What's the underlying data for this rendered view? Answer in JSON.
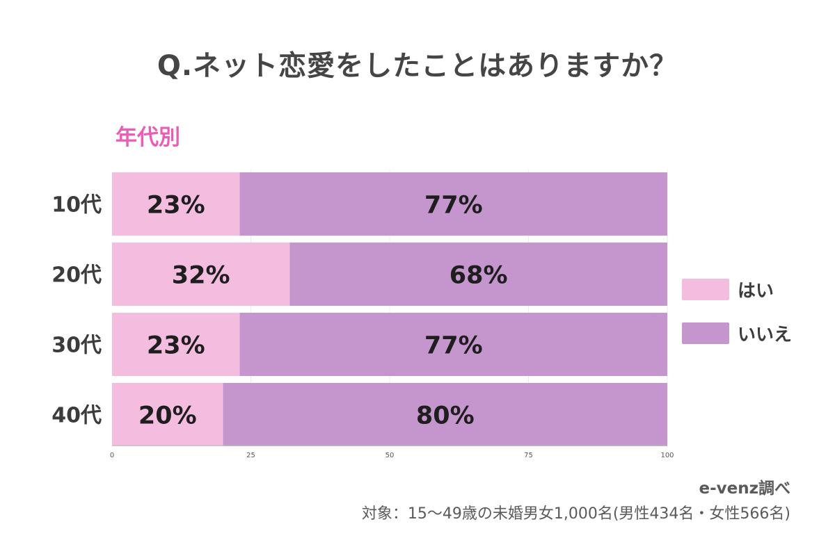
{
  "title": "Q.ネット恋愛をしたことはありますか？",
  "subtitle": "年代別",
  "source": "e-venz調べ",
  "note": "対象：15～49歳の未婚男女1,000名(男性434名・女性566名)",
  "colors": {
    "yes": "#f4bddf",
    "no": "#c596cd",
    "background": "#ffffff",
    "text": "#3c3c3c",
    "subtitle": "#e95eb4"
  },
  "chart_data": {
    "type": "bar",
    "orientation": "horizontal",
    "stacked": true,
    "categories": [
      "10代",
      "20代",
      "30代",
      "40代"
    ],
    "series": [
      {
        "name": "はい",
        "values": [
          23,
          32,
          23,
          20
        ],
        "labels": [
          "23%",
          "32%",
          "23%",
          "20%"
        ]
      },
      {
        "name": "いいえ",
        "values": [
          77,
          68,
          77,
          80
        ],
        "labels": [
          "77%",
          "68%",
          "77%",
          "80%"
        ]
      }
    ],
    "xlim": [
      0,
      100
    ],
    "xticks": [
      "0",
      "25",
      "50",
      "75",
      "100"
    ],
    "xtick_values": [
      0,
      25,
      50,
      75,
      100
    ],
    "grid": true,
    "legend": "right"
  }
}
